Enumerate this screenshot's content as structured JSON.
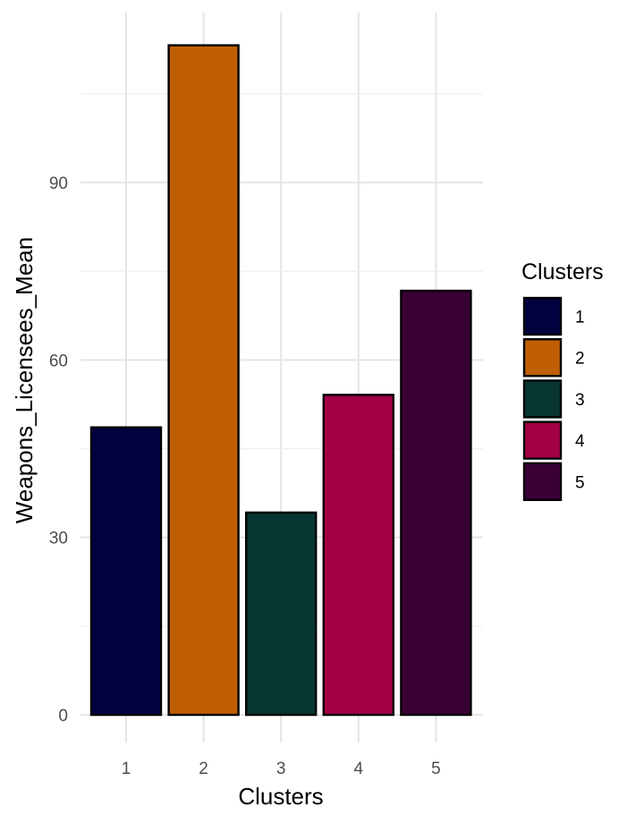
{
  "chart_data": {
    "type": "bar",
    "categories": [
      "1",
      "2",
      "3",
      "4",
      "5"
    ],
    "values": [
      48.6,
      113.2,
      34.2,
      54.1,
      71.7
    ],
    "colors": [
      "#02013f",
      "#c05e04",
      "#083630",
      "#a30047",
      "#3a0036"
    ],
    "xlabel": "Clusters",
    "ylabel": "Weapons_Licensees_Mean",
    "ylim": [
      0,
      118
    ],
    "yticks": [
      0,
      30,
      60,
      90
    ],
    "grid": true,
    "legend": {
      "title": "Clusters",
      "position": "right",
      "items": [
        "1",
        "2",
        "3",
        "4",
        "5"
      ]
    }
  }
}
